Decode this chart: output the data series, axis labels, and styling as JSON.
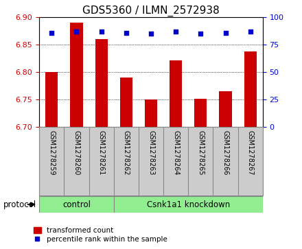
{
  "title": "GDS5360 / ILMN_2572938",
  "samples": [
    "GSM1278259",
    "GSM1278260",
    "GSM1278261",
    "GSM1278262",
    "GSM1278263",
    "GSM1278264",
    "GSM1278265",
    "GSM1278266",
    "GSM1278267"
  ],
  "bar_values": [
    6.8,
    6.89,
    6.86,
    6.79,
    6.75,
    6.822,
    6.752,
    6.765,
    6.838
  ],
  "percentile_values": [
    86,
    87,
    87,
    86,
    85,
    87,
    85,
    86,
    87
  ],
  "bar_bottom": 6.7,
  "ylim_left": [
    6.7,
    6.9
  ],
  "ylim_right": [
    0,
    100
  ],
  "yticks_left": [
    6.7,
    6.75,
    6.8,
    6.85,
    6.9
  ],
  "yticks_right": [
    0,
    25,
    50,
    75,
    100
  ],
  "bar_color": "#cc0000",
  "dot_color": "#0000cc",
  "grid_color": "#000000",
  "bg_plot": "#ffffff",
  "bg_sample": "#cccccc",
  "control_samples": 3,
  "control_label": "control",
  "treatment_label": "Csnk1a1 knockdown",
  "protocol_label": "protocol",
  "legend_bar_label": "transformed count",
  "legend_dot_label": "percentile rank within the sample",
  "left_label_color": "#cc0000",
  "right_label_color": "#0000cc",
  "title_fontsize": 11,
  "tick_fontsize": 8,
  "sample_fontsize": 7,
  "label_fontsize": 8.5,
  "green_color": "#90ee90",
  "green_dark": "#44bb44"
}
